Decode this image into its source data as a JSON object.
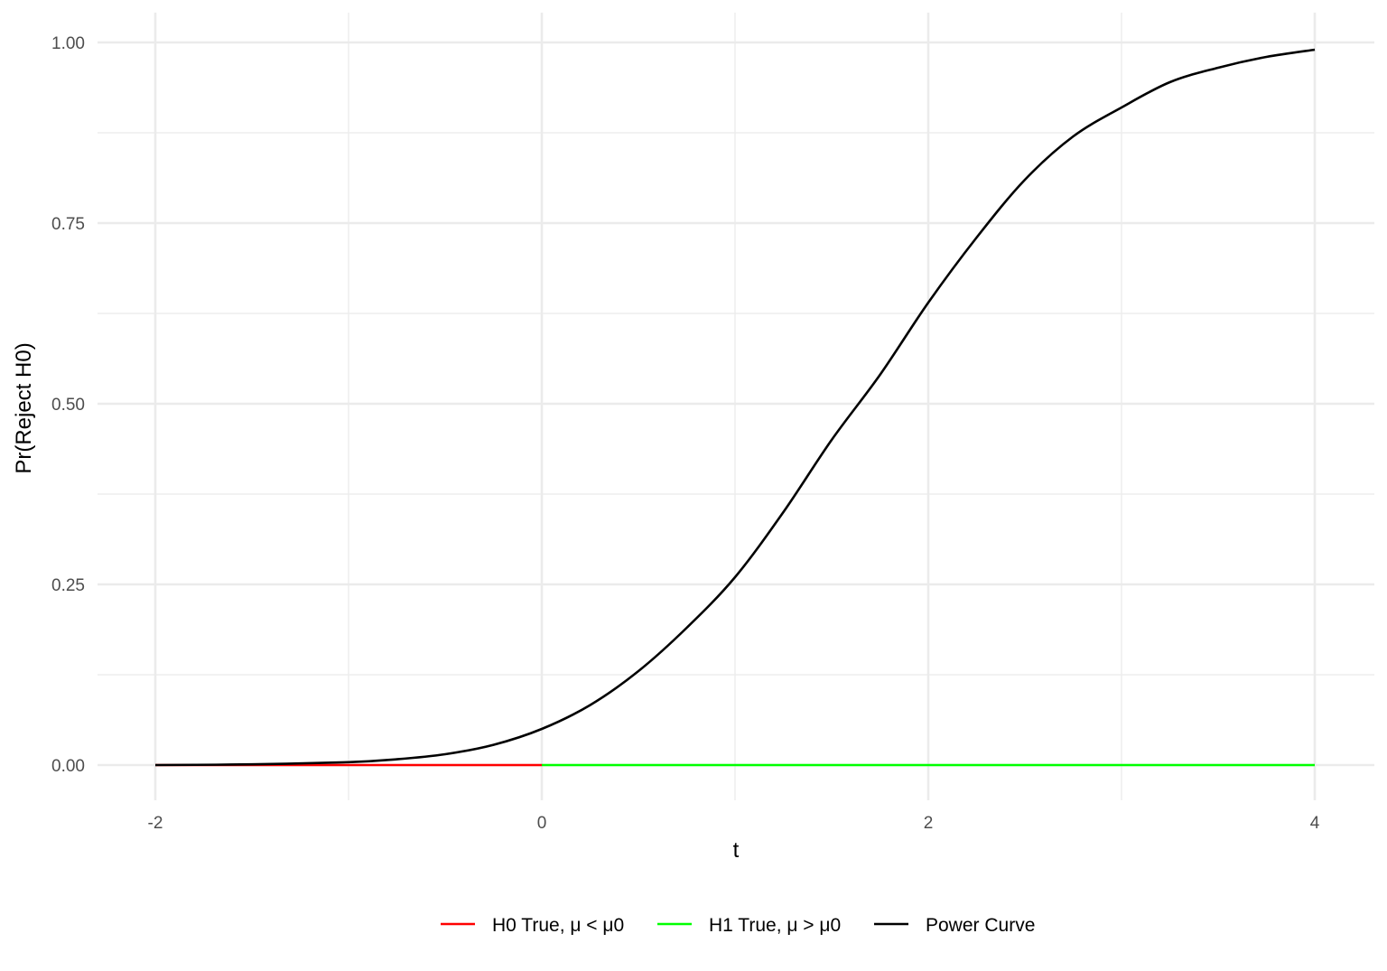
{
  "chart_data": {
    "type": "line",
    "xlabel": "t",
    "ylabel": "Pr(Reject H0)",
    "xlim": [
      -2.1,
      4.3
    ],
    "ylim": [
      -0.05,
      1.04
    ],
    "x_ticks": [
      -2,
      0,
      2,
      4
    ],
    "x_tick_labels": [
      "-2",
      "0",
      "2",
      "4"
    ],
    "y_ticks": [
      0,
      0.25,
      0.5,
      0.75,
      1
    ],
    "y_tick_labels": [
      "0.00",
      "0.25",
      "0.50",
      "0.75",
      "1.00"
    ],
    "grid": true,
    "legend_position": "bottom",
    "series": [
      {
        "name": "H0 True, μ < μ0",
        "color": "#ff0000",
        "x": [
          -2,
          0
        ],
        "y": [
          0,
          0
        ]
      },
      {
        "name": "H1 True, μ > μ0",
        "color": "#00ff00",
        "x": [
          0,
          4
        ],
        "y": [
          0,
          0
        ]
      },
      {
        "name": "Power Curve",
        "color": "#000000",
        "x": [
          -2,
          -1.5,
          -1,
          -0.75,
          -0.5,
          -0.25,
          0,
          0.25,
          0.5,
          0.75,
          1,
          1.25,
          1.5,
          1.75,
          2,
          2.25,
          2.5,
          2.75,
          3,
          3.25,
          3.5,
          3.75,
          4
        ],
        "y": [
          0,
          0.001,
          0.004,
          0.008,
          0.015,
          0.028,
          0.05,
          0.083,
          0.13,
          0.19,
          0.26,
          0.35,
          0.45,
          0.54,
          0.64,
          0.73,
          0.81,
          0.87,
          0.91,
          0.945,
          0.965,
          0.98,
          0.99
        ]
      }
    ]
  }
}
